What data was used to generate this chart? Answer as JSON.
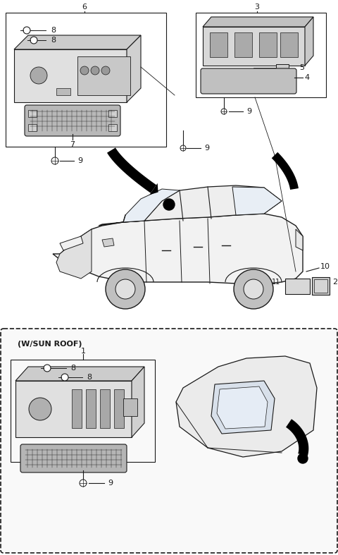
{
  "bg_color": "#ffffff",
  "lc": "#1a1a1a",
  "fig_w": 4.8,
  "fig_h": 7.87,
  "dpi": 100,
  "sunroof_label": "(W/SUN ROOF)"
}
